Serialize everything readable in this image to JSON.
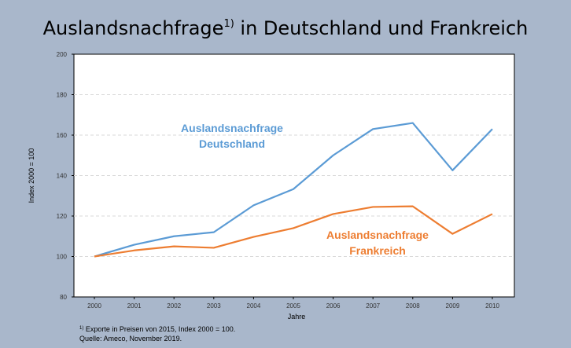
{
  "chart_data": {
    "type": "line",
    "title": "Auslandsnachfrage",
    "title_sup": "1)",
    "title_rest": " in Deutschland und Frankreich",
    "xlabel": "Jahre",
    "ylabel": "Index 2000 = 100",
    "categories": [
      "2000",
      "2001",
      "2002",
      "2003",
      "2004",
      "2005",
      "2006",
      "2007",
      "2008",
      "2009",
      "2010"
    ],
    "ylim": [
      80,
      200
    ],
    "yticks": [
      80,
      100,
      120,
      140,
      160,
      180,
      200
    ],
    "grid": "horizontal dashed",
    "series": [
      {
        "name": "Auslandsnachfrage Deutschland",
        "label_lines": [
          "Auslandsnachfrage",
          "Deutschland"
        ],
        "color": "#5b9bd5",
        "values": [
          100,
          105.8,
          110,
          112,
          125.3,
          133.3,
          150,
          163,
          166,
          142.6,
          163
        ]
      },
      {
        "name": "Auslandsnachfrage Frankreich",
        "label_lines": [
          "Auslandsnachfrage",
          "Frankreich"
        ],
        "color": "#ed7d31",
        "values": [
          100,
          103,
          105,
          104.3,
          109.7,
          114,
          121,
          124.5,
          124.8,
          111.2,
          121
        ]
      }
    ]
  },
  "footnote": {
    "marker": "1)",
    "line1": " Exporte in Preisen von 2015, Index 2000 = 100.",
    "line2": "Quelle: Ameco, November 2019."
  }
}
